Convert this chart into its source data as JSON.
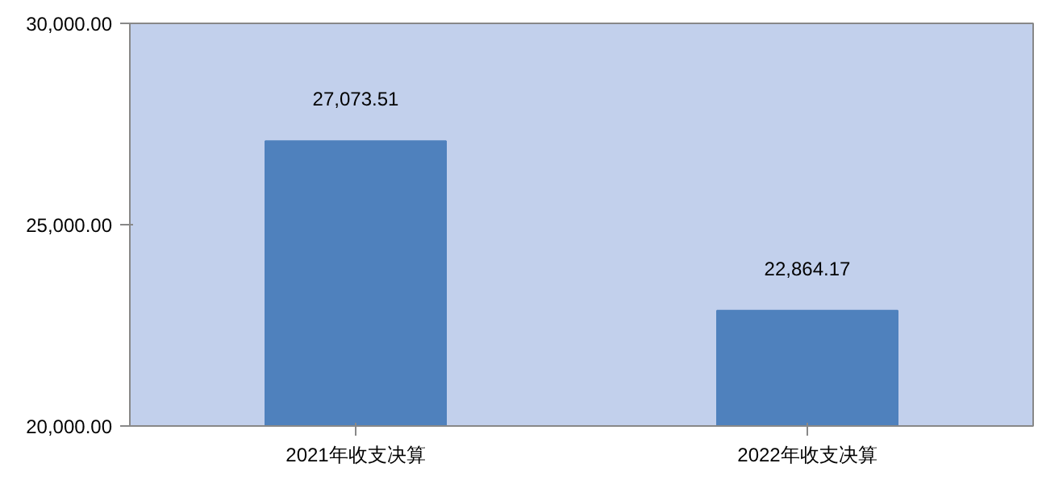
{
  "chart_data": {
    "type": "bar",
    "categories": [
      "2021年收支决算",
      "2022年收支决算"
    ],
    "values": [
      27073.51,
      22864.17
    ],
    "value_labels": [
      "27,073.51",
      "22,864.17"
    ],
    "color": "#4f81bd",
    "ylim": [
      20000,
      30000
    ],
    "yticks": [
      {
        "value": 20000,
        "label": "20,000.00"
      },
      {
        "value": 25000,
        "label": "25,000.00"
      },
      {
        "value": 30000,
        "label": "30,000.00"
      }
    ],
    "grid": false
  }
}
